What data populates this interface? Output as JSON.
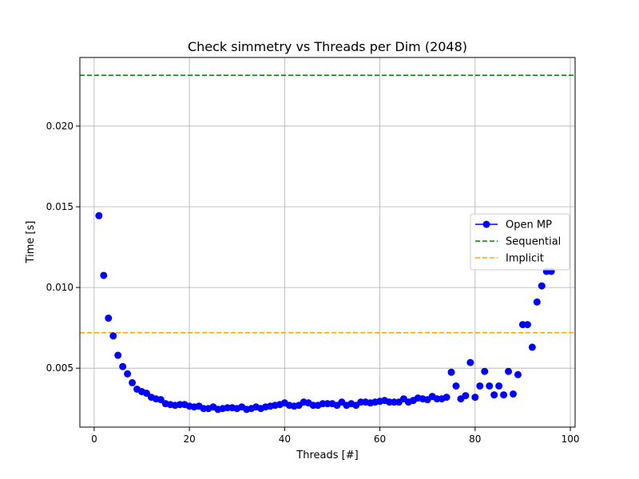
{
  "chart_data": {
    "type": "scatter",
    "title": "Check simmetry vs Threads per Dim (2048)",
    "xlabel": "Threads [#]",
    "ylabel": "Time [s]",
    "xlim": [
      -3,
      101
    ],
    "ylim": [
      0.00135,
      0.02425
    ],
    "xticks": [
      0,
      20,
      40,
      60,
      80,
      100
    ],
    "yticks": [
      0.005,
      0.01,
      0.015,
      0.02
    ],
    "xtick_labels": [
      "0",
      "20",
      "40",
      "60",
      "80",
      "100"
    ],
    "ytick_labels": [
      "0.005",
      "0.010",
      "0.015",
      "0.020"
    ],
    "grid": true,
    "legend_position": "center-right",
    "series": [
      {
        "name": "Open MP",
        "style": "markers",
        "color": "#0000ff",
        "x": [
          1,
          2,
          3,
          4,
          5,
          6,
          7,
          8,
          9,
          10,
          11,
          12,
          13,
          14,
          15,
          16,
          17,
          18,
          19,
          20,
          21,
          22,
          23,
          24,
          25,
          26,
          27,
          28,
          29,
          30,
          31,
          32,
          33,
          34,
          35,
          36,
          37,
          38,
          39,
          40,
          41,
          42,
          43,
          44,
          45,
          46,
          47,
          48,
          49,
          50,
          51,
          52,
          53,
          54,
          55,
          56,
          57,
          58,
          59,
          60,
          61,
          62,
          63,
          64,
          65,
          66,
          67,
          68,
          69,
          70,
          71,
          72,
          73,
          74,
          75,
          76,
          77,
          78,
          79,
          80,
          81,
          82,
          83,
          84,
          85,
          86,
          87,
          88,
          89,
          90,
          91,
          92,
          93,
          94,
          95,
          96
        ],
        "y": [
          0.01445,
          0.01075,
          0.0081,
          0.007,
          0.0058,
          0.0051,
          0.00465,
          0.0041,
          0.0037,
          0.00355,
          0.00345,
          0.0032,
          0.0031,
          0.00305,
          0.0028,
          0.00275,
          0.0027,
          0.00275,
          0.00275,
          0.00265,
          0.0026,
          0.00265,
          0.0025,
          0.0025,
          0.0026,
          0.00245,
          0.0025,
          0.00255,
          0.00255,
          0.0025,
          0.0026,
          0.00245,
          0.0025,
          0.0026,
          0.0025,
          0.0026,
          0.00265,
          0.0027,
          0.00275,
          0.00285,
          0.0027,
          0.00265,
          0.0027,
          0.0029,
          0.00285,
          0.0027,
          0.0027,
          0.0028,
          0.0028,
          0.0028,
          0.0027,
          0.0029,
          0.0027,
          0.0028,
          0.0027,
          0.0029,
          0.0029,
          0.00285,
          0.0029,
          0.00295,
          0.003,
          0.0029,
          0.0029,
          0.0029,
          0.0031,
          0.0029,
          0.003,
          0.00315,
          0.0031,
          0.00305,
          0.00325,
          0.0031,
          0.0031,
          0.0032,
          0.00475,
          0.0039,
          0.0031,
          0.0033,
          0.00535,
          0.0032,
          0.0039,
          0.0048,
          0.0039,
          0.00335,
          0.0039,
          0.00335,
          0.0048,
          0.0034,
          0.0046,
          0.0077,
          0.0077,
          0.0063,
          0.0091,
          0.0101,
          0.011,
          0.011
        ]
      },
      {
        "name": "Sequential",
        "style": "dashed-hline",
        "color": "#008000",
        "y": 0.02315
      },
      {
        "name": "Implicit",
        "style": "dashed-hline",
        "color": "#ffa500",
        "y": 0.0072
      }
    ]
  }
}
